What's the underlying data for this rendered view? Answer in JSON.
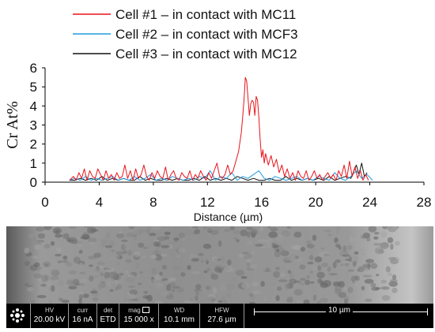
{
  "chart_data": {
    "type": "line",
    "xlabel": "Distance (µm)",
    "ylabel": "Cr At%",
    "xlim": [
      0,
      28
    ],
    "ylim": [
      0,
      6
    ],
    "xticks": [
      "0",
      "4",
      "8",
      "12",
      "16",
      "20",
      "24",
      "28"
    ],
    "yticks": [
      "0",
      "1",
      "2",
      "3",
      "4",
      "5",
      "6"
    ],
    "grid": false,
    "legend_position": "top",
    "series": [
      {
        "name": "Cell #1 – in contact with MC11",
        "color": "#e8141c",
        "x": [
          1.8,
          2.1,
          2.3,
          2.5,
          2.7,
          2.9,
          3.1,
          3.3,
          3.5,
          3.7,
          3.9,
          4.1,
          4.3,
          4.5,
          4.7,
          4.9,
          5.1,
          5.3,
          5.5,
          5.7,
          5.9,
          6.1,
          6.3,
          6.5,
          6.7,
          6.9,
          7.1,
          7.3,
          7.5,
          7.7,
          7.9,
          8.1,
          8.3,
          8.5,
          8.7,
          8.9,
          9.1,
          9.3,
          9.5,
          9.7,
          9.9,
          10.1,
          10.3,
          10.5,
          10.7,
          10.9,
          11.1,
          11.3,
          11.5,
          11.7,
          11.9,
          12.1,
          12.3,
          12.5,
          12.7,
          12.9,
          13.1,
          13.3,
          13.5,
          13.7,
          13.9,
          14.1,
          14.3,
          14.5,
          14.6,
          14.7,
          14.8,
          14.9,
          15.0,
          15.1,
          15.2,
          15.3,
          15.4,
          15.5,
          15.6,
          15.7,
          15.8,
          15.9,
          16.0,
          16.1,
          16.2,
          16.3,
          16.5,
          16.7,
          16.9,
          17.1,
          17.3,
          17.5,
          17.7,
          17.9,
          18.1,
          18.3,
          18.5,
          18.7,
          18.9,
          19.1,
          19.3,
          19.5,
          19.7,
          19.9,
          20.1,
          20.3,
          20.5,
          20.7,
          20.9,
          21.1,
          21.3,
          21.5,
          21.7,
          21.9,
          22.1,
          22.3,
          22.5,
          22.7,
          22.9,
          23.1,
          23.3,
          23.5,
          23.7,
          23.9
        ],
        "y": [
          0.1,
          0.3,
          0.1,
          0.5,
          0.2,
          0.7,
          0.1,
          0.6,
          0.3,
          0.2,
          0.7,
          0.4,
          0.1,
          0.6,
          0.2,
          0.4,
          0.1,
          0.5,
          0.2,
          0.3,
          0.9,
          0.2,
          0.6,
          0.1,
          0.7,
          0.2,
          0.4,
          0.9,
          0.3,
          0.1,
          0.5,
          0.2,
          0.6,
          0.3,
          0.2,
          0.8,
          0.1,
          0.4,
          0.6,
          0.2,
          0.1,
          0.5,
          0.3,
          0.2,
          0.6,
          0.1,
          0.4,
          0.2,
          0.6,
          0.3,
          0.1,
          0.5,
          0.2,
          0.6,
          1.0,
          0.3,
          0.2,
          0.4,
          0.9,
          0.4,
          0.6,
          1.1,
          1.6,
          2.6,
          3.4,
          4.3,
          5.5,
          5.3,
          4.4,
          3.5,
          4.1,
          4.3,
          4.2,
          3.5,
          4.5,
          4.3,
          3.4,
          2.2,
          1.3,
          1.7,
          1.0,
          1.5,
          0.9,
          1.4,
          0.8,
          1.2,
          0.5,
          0.9,
          0.3,
          0.7,
          0.2,
          0.5,
          0.1,
          0.6,
          0.3,
          0.2,
          0.6,
          0.1,
          0.3,
          0.6,
          0.2,
          0.4,
          0.1,
          0.3,
          0.5,
          0.2,
          0.4,
          0.1,
          0.6,
          0.3,
          0.9,
          0.2,
          1.1,
          0.3,
          0.8,
          0.2,
          0.6,
          0.1,
          0.4,
          0.1
        ]
      },
      {
        "name": "Cell #2 – in contact with MCF3",
        "color": "#1f9ae0",
        "x": [
          1.8,
          2.2,
          2.6,
          3.0,
          3.4,
          3.8,
          4.2,
          4.6,
          5.0,
          5.4,
          5.8,
          6.2,
          6.6,
          7.0,
          7.4,
          7.8,
          8.2,
          8.6,
          9.0,
          9.4,
          9.8,
          10.2,
          10.6,
          11.0,
          11.4,
          11.8,
          12.2,
          12.6,
          13.0,
          13.4,
          13.8,
          14.2,
          14.6,
          15.0,
          15.4,
          15.8,
          16.2,
          16.6,
          17.0,
          17.4,
          17.8,
          18.2,
          18.6,
          19.0,
          19.4,
          19.8,
          20.2,
          20.6,
          21.0,
          21.4,
          21.8,
          22.2,
          22.6,
          23.0,
          23.4,
          23.8,
          24.2
        ],
        "y": [
          0.1,
          0.2,
          0.1,
          0.3,
          0.1,
          0.2,
          0.1,
          0.2,
          0.3,
          0.1,
          0.2,
          0.1,
          0.3,
          0.1,
          0.2,
          0.4,
          0.1,
          0.2,
          0.1,
          0.3,
          0.2,
          0.1,
          0.2,
          0.1,
          0.3,
          0.2,
          0.6,
          0.1,
          0.3,
          0.2,
          0.5,
          0.1,
          0.3,
          0.2,
          0.4,
          0.6,
          0.2,
          0.1,
          0.3,
          0.2,
          0.1,
          0.2,
          0.3,
          0.1,
          0.2,
          0.1,
          0.3,
          0.2,
          0.1,
          0.5,
          0.2,
          0.1,
          0.3,
          0.6,
          0.2,
          0.4,
          0.1
        ]
      },
      {
        "name": "Cell #3 – in contact with MC12",
        "color": "#111111",
        "x": [
          1.8,
          2.2,
          2.6,
          3.0,
          3.4,
          3.8,
          4.2,
          4.6,
          5.0,
          5.4,
          5.8,
          6.2,
          6.6,
          7.0,
          7.4,
          7.8,
          8.2,
          8.6,
          9.0,
          9.4,
          9.8,
          10.2,
          10.6,
          11.0,
          11.4,
          11.8,
          12.2,
          12.6,
          13.0,
          13.4,
          13.8,
          14.2,
          14.6,
          15.0,
          15.4,
          15.8,
          16.2,
          16.6,
          17.0,
          17.4,
          17.8,
          18.2,
          18.6,
          19.0,
          19.4,
          19.8,
          20.2,
          20.6,
          21.0,
          21.4,
          21.8,
          22.2,
          22.6,
          23.0,
          23.2,
          23.4,
          23.6,
          23.8
        ],
        "y": [
          0.1,
          0.1,
          0.2,
          0.1,
          0.2,
          0.1,
          0.3,
          0.1,
          0.2,
          0.1,
          0.2,
          0.1,
          0.1,
          0.3,
          0.1,
          0.2,
          0.1,
          0.1,
          0.2,
          0.1,
          0.2,
          0.1,
          0.1,
          0.2,
          0.1,
          0.3,
          0.1,
          0.2,
          0.1,
          0.2,
          0.1,
          0.3,
          0.2,
          0.1,
          0.2,
          0.1,
          0.1,
          0.2,
          0.1,
          0.1,
          0.3,
          0.1,
          0.2,
          0.1,
          0.2,
          0.1,
          0.2,
          0.1,
          0.3,
          0.1,
          0.2,
          0.3,
          0.2,
          0.9,
          0.4,
          1.0,
          0.3,
          0.5
        ]
      }
    ]
  },
  "sem_info": {
    "fields": [
      {
        "label": "HV",
        "value": "20.00 kV"
      },
      {
        "label": "curr",
        "value": "16 nA"
      },
      {
        "label": "det",
        "value": "ETD"
      },
      {
        "label": "mag",
        "value": "15 000 x"
      },
      {
        "label": "WD",
        "value": "10.1 mm"
      },
      {
        "label": "HFW",
        "value": "27.6 µm"
      }
    ],
    "scale_bar": "10 µm"
  },
  "icons": {
    "logo": "fei-logo-icon",
    "mag": "frame-icon"
  }
}
